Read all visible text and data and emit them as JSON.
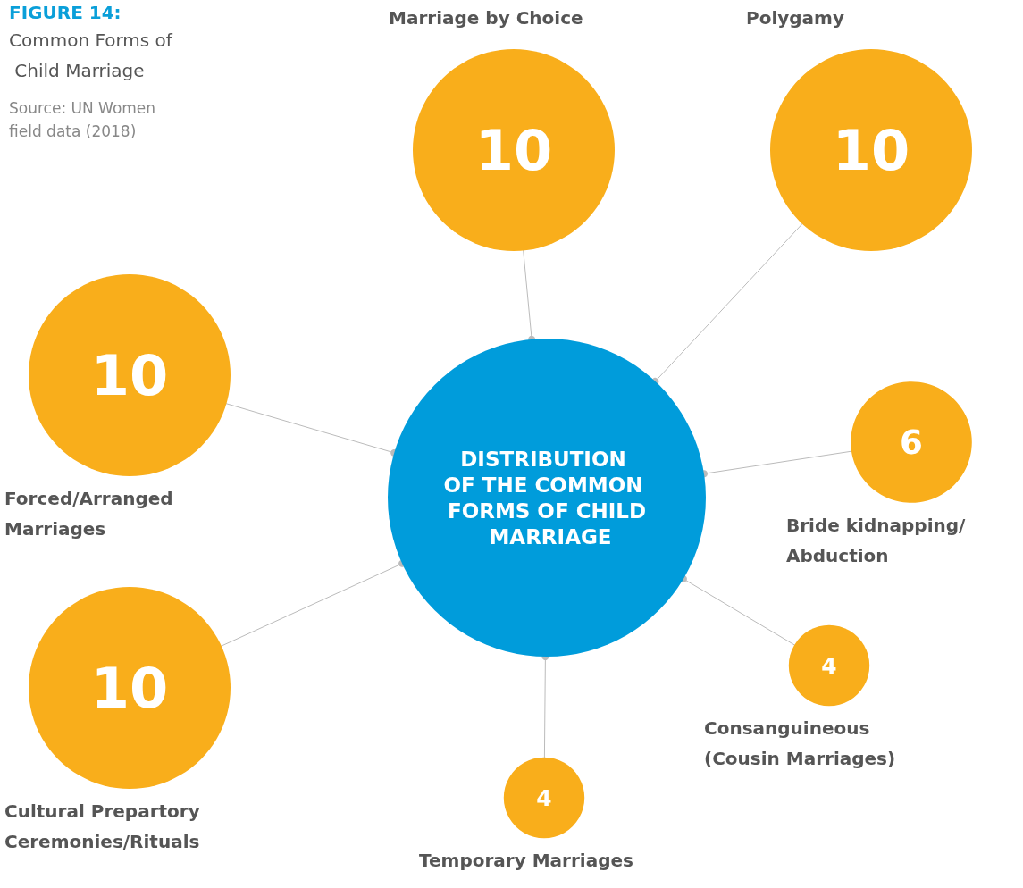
{
  "chart_data": {
    "type": "other",
    "title": "FIGURE 14:",
    "subtitle": "Common Forms of Child Marriage",
    "annotations": [
      "DISTRIBUTION OF THE COMMON FORMS OF CHILD MARRIAGE",
      "Source: UN Women field data (2018)"
    ],
    "categories": [
      "Marriage by Choice",
      "Polygamy",
      "Bride kidnapping/ Abduction",
      "Consanguineous (Cousin Marriages)",
      "Temporary Marriages",
      "Cultural Prepartory Ceremonies/Rituals",
      "Forced/Arranged Marriages"
    ],
    "values": [
      10,
      10,
      6,
      4,
      4,
      10,
      10
    ],
    "colors": [
      "#f9ae1b",
      "#f9ae1b",
      "#f9ae1b",
      "#f9ae1b",
      "#f9ae1b",
      "#f9ae1b",
      "#f9ae1b"
    ],
    "data_labels": true
  }
}
